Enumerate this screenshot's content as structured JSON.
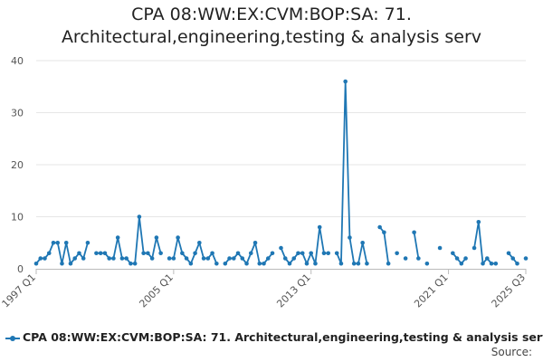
{
  "title_lines": [
    "CPA 08:WW:EX:CVM:BOP:SA: 71.",
    "Architectural,engineering,testing & analysis serv"
  ],
  "source_label": "Source:",
  "chart_data": {
    "type": "line",
    "title": "CPA 08:WW:EX:CVM:BOP:SA: 71. Architectural,engineering,testing & analysis serv",
    "xlabel": "",
    "ylabel": "",
    "ylim": [
      0,
      40
    ],
    "yticks": [
      0,
      10,
      20,
      30,
      40
    ],
    "grid": true,
    "legend_position": "bottom",
    "x_first": "1997 Q1",
    "x_last": "2025 Q3",
    "xticks": [
      "1997 Q1",
      "2005 Q1",
      "2013 Q1",
      "2021 Q1",
      "2025 Q3"
    ],
    "series": [
      {
        "name": "CPA 08:WW:EX:CVM:BOP:SA: 71. Architectural,engineering,testing & analysis serv",
        "color": "#1f77b4",
        "values": [
          1,
          2,
          2,
          3,
          5,
          5,
          1,
          5,
          1,
          2,
          3,
          2,
          5,
          null,
          3,
          3,
          3,
          2,
          2,
          6,
          2,
          2,
          1,
          1,
          10,
          3,
          3,
          2,
          6,
          3,
          null,
          2,
          2,
          6,
          3,
          2,
          1,
          3,
          5,
          2,
          2,
          3,
          1,
          null,
          1,
          2,
          2,
          3,
          2,
          1,
          3,
          5,
          1,
          1,
          2,
          3,
          null,
          4,
          2,
          1,
          2,
          3,
          3,
          1,
          3,
          1,
          8,
          3,
          3,
          null,
          3,
          1,
          36,
          6,
          1,
          1,
          5,
          1,
          null,
          null,
          8,
          7,
          1,
          null,
          3,
          null,
          2,
          null,
          7,
          2,
          null,
          1,
          null,
          null,
          4,
          null,
          null,
          3,
          2,
          1,
          2,
          null,
          4,
          9,
          1,
          2,
          1,
          1,
          null,
          null,
          3,
          2,
          1,
          null,
          2
        ]
      }
    ]
  }
}
